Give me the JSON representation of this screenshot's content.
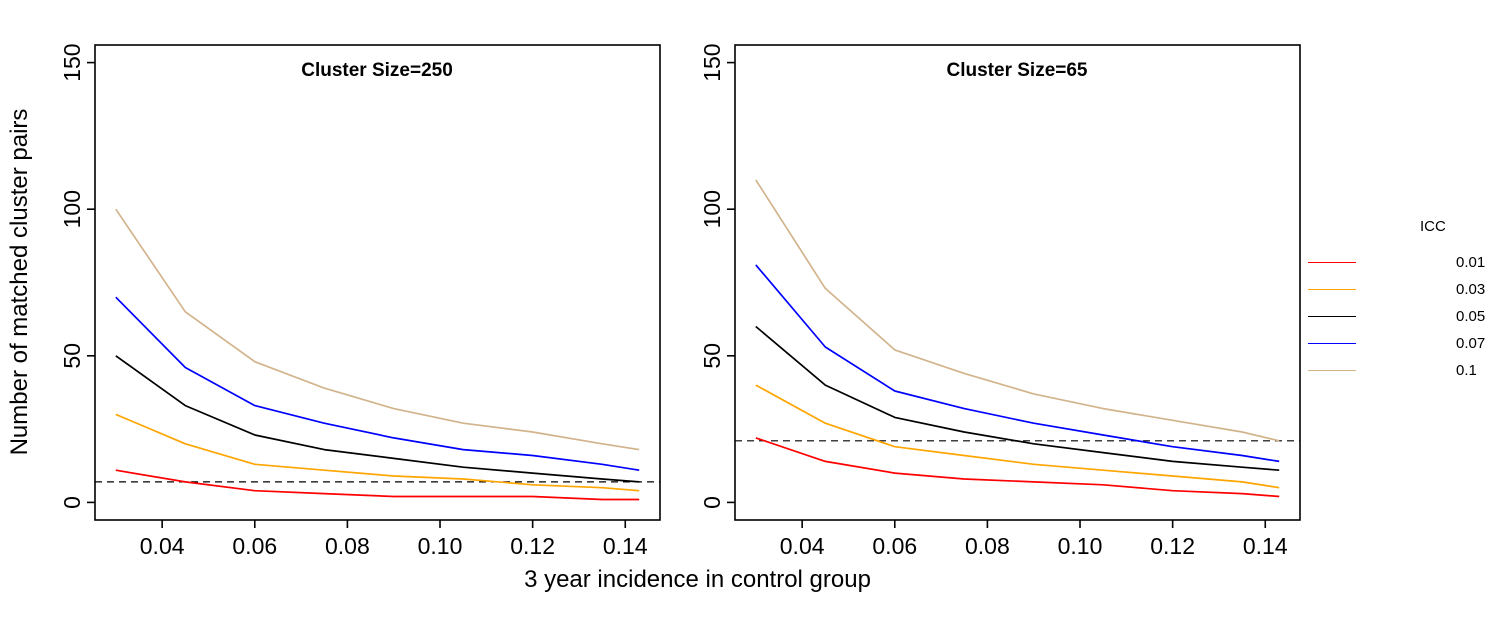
{
  "labels": {
    "xlabel": "3 year incidence in control group",
    "ylabel": "Number of matched cluster pairs"
  },
  "legend": {
    "title": "ICC",
    "entries": [
      {
        "label": "0.01",
        "color": "#FF0000"
      },
      {
        "label": "0.03",
        "color": "#FFA500"
      },
      {
        "label": "0.05",
        "color": "#000000"
      },
      {
        "label": "0.07",
        "color": "#0000FF"
      },
      {
        "label": "0.1",
        "color": "#D2B48C"
      }
    ]
  },
  "chart_data": [
    {
      "type": "line",
      "title": "Cluster Size=250",
      "xlabel": "3 year incidence in control group",
      "ylabel": "Number of matched cluster pairs",
      "x": [
        0.03,
        0.045,
        0.06,
        0.075,
        0.09,
        0.105,
        0.12,
        0.135,
        0.143
      ],
      "xticks": [
        0.04,
        0.06,
        0.08,
        0.1,
        0.12,
        0.14
      ],
      "yticks": [
        0,
        50,
        100,
        150
      ],
      "xlim": [
        0.0255,
        0.1475
      ],
      "ylim": [
        -6,
        156
      ],
      "grid": false,
      "dashed_hline": 7,
      "series": [
        {
          "name": "0.01",
          "color": "#FF0000",
          "values": [
            11,
            7,
            4,
            3,
            2,
            2,
            2,
            1,
            1
          ]
        },
        {
          "name": "0.03",
          "color": "#FFA500",
          "values": [
            30,
            20,
            13,
            11,
            9,
            8,
            6,
            5,
            4
          ]
        },
        {
          "name": "0.05",
          "color": "#000000",
          "values": [
            50,
            33,
            23,
            18,
            15,
            12,
            10,
            8,
            7
          ]
        },
        {
          "name": "0.07",
          "color": "#0000FF",
          "values": [
            70,
            46,
            33,
            27,
            22,
            18,
            16,
            13,
            11
          ]
        },
        {
          "name": "0.1",
          "color": "#D2B48C",
          "values": [
            100,
            65,
            48,
            39,
            32,
            27,
            24,
            20,
            18
          ]
        }
      ]
    },
    {
      "type": "line",
      "title": "Cluster Size=65",
      "xlabel": "3 year incidence in control group",
      "ylabel": "Number of matched cluster pairs",
      "x": [
        0.03,
        0.045,
        0.06,
        0.075,
        0.09,
        0.105,
        0.12,
        0.135,
        0.143
      ],
      "xticks": [
        0.04,
        0.06,
        0.08,
        0.1,
        0.12,
        0.14
      ],
      "yticks": [
        0,
        50,
        100,
        150
      ],
      "xlim": [
        0.0255,
        0.1475
      ],
      "ylim": [
        -6,
        156
      ],
      "grid": false,
      "dashed_hline": 21,
      "series": [
        {
          "name": "0.01",
          "color": "#FF0000",
          "values": [
            22,
            14,
            10,
            8,
            7,
            6,
            4,
            3,
            2
          ]
        },
        {
          "name": "0.03",
          "color": "#FFA500",
          "values": [
            40,
            27,
            19,
            16,
            13,
            11,
            9,
            7,
            5
          ]
        },
        {
          "name": "0.05",
          "color": "#000000",
          "values": [
            60,
            40,
            29,
            24,
            20,
            17,
            14,
            12,
            11
          ]
        },
        {
          "name": "0.07",
          "color": "#0000FF",
          "values": [
            81,
            53,
            38,
            32,
            27,
            23,
            19,
            16,
            14
          ]
        },
        {
          "name": "0.1",
          "color": "#D2B48C",
          "values": [
            110,
            73,
            52,
            44,
            37,
            32,
            28,
            24,
            21
          ]
        }
      ]
    }
  ]
}
